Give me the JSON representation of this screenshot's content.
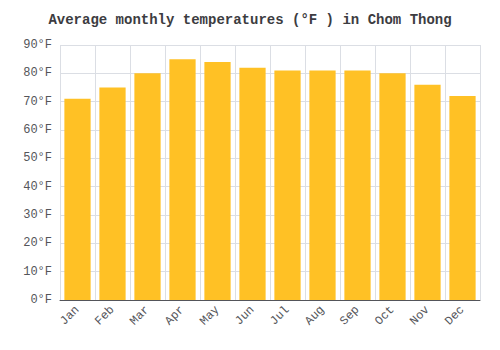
{
  "chart_data": {
    "type": "bar",
    "title": "Average monthly temperatures (°F ) in Chom Thong",
    "categories": [
      "Jan",
      "Feb",
      "Mar",
      "Apr",
      "May",
      "Jun",
      "Jul",
      "Aug",
      "Sep",
      "Oct",
      "Nov",
      "Dec"
    ],
    "values": [
      71,
      75,
      80,
      85,
      84,
      82,
      81,
      81,
      81,
      80,
      76,
      72
    ],
    "color": "#FFC125",
    "ylim": [
      0,
      90
    ],
    "yticks": [
      {
        "value": 0,
        "label": "0°F"
      },
      {
        "value": 10,
        "label": "10°F"
      },
      {
        "value": 20,
        "label": "20°F"
      },
      {
        "value": 30,
        "label": "30°F"
      },
      {
        "value": 40,
        "label": "40°F"
      },
      {
        "value": 50,
        "label": "50°F"
      },
      {
        "value": 60,
        "label": "60°F"
      },
      {
        "value": 70,
        "label": "70°F"
      },
      {
        "value": 80,
        "label": "80°F"
      },
      {
        "value": 90,
        "label": "90°F"
      }
    ],
    "grid": true
  }
}
